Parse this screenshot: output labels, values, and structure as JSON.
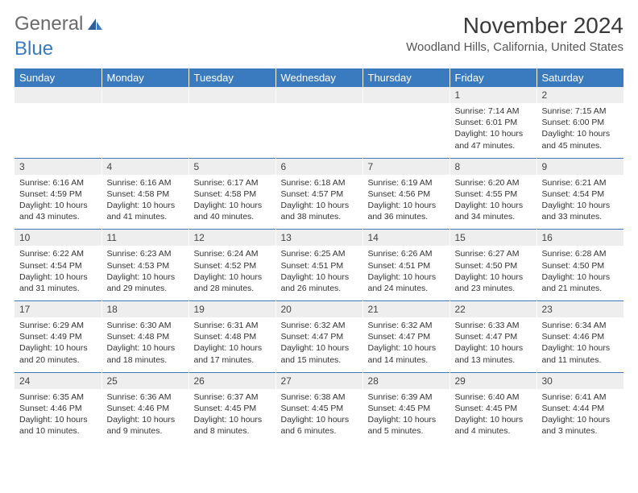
{
  "logo": {
    "part1": "General",
    "part2": "Blue"
  },
  "title": "November 2024",
  "location": "Woodland Hills, California, United States",
  "colors": {
    "header_bg": "#3a7bbf",
    "header_text": "#ffffff",
    "daynum_bg": "#eeeeee",
    "border": "#3a7bbf",
    "text": "#333333"
  },
  "typography": {
    "title_fontsize": 28,
    "location_fontsize": 15,
    "weekday_fontsize": 13,
    "daynum_fontsize": 12,
    "detail_fontsize": 10.5
  },
  "weekdays": [
    "Sunday",
    "Monday",
    "Tuesday",
    "Wednesday",
    "Thursday",
    "Friday",
    "Saturday"
  ],
  "weeks": [
    [
      null,
      null,
      null,
      null,
      null,
      {
        "n": "1",
        "sr": "Sunrise: 7:14 AM",
        "ss": "Sunset: 6:01 PM",
        "dl": "Daylight: 10 hours and 47 minutes."
      },
      {
        "n": "2",
        "sr": "Sunrise: 7:15 AM",
        "ss": "Sunset: 6:00 PM",
        "dl": "Daylight: 10 hours and 45 minutes."
      }
    ],
    [
      {
        "n": "3",
        "sr": "Sunrise: 6:16 AM",
        "ss": "Sunset: 4:59 PM",
        "dl": "Daylight: 10 hours and 43 minutes."
      },
      {
        "n": "4",
        "sr": "Sunrise: 6:16 AM",
        "ss": "Sunset: 4:58 PM",
        "dl": "Daylight: 10 hours and 41 minutes."
      },
      {
        "n": "5",
        "sr": "Sunrise: 6:17 AM",
        "ss": "Sunset: 4:58 PM",
        "dl": "Daylight: 10 hours and 40 minutes."
      },
      {
        "n": "6",
        "sr": "Sunrise: 6:18 AM",
        "ss": "Sunset: 4:57 PM",
        "dl": "Daylight: 10 hours and 38 minutes."
      },
      {
        "n": "7",
        "sr": "Sunrise: 6:19 AM",
        "ss": "Sunset: 4:56 PM",
        "dl": "Daylight: 10 hours and 36 minutes."
      },
      {
        "n": "8",
        "sr": "Sunrise: 6:20 AM",
        "ss": "Sunset: 4:55 PM",
        "dl": "Daylight: 10 hours and 34 minutes."
      },
      {
        "n": "9",
        "sr": "Sunrise: 6:21 AM",
        "ss": "Sunset: 4:54 PM",
        "dl": "Daylight: 10 hours and 33 minutes."
      }
    ],
    [
      {
        "n": "10",
        "sr": "Sunrise: 6:22 AM",
        "ss": "Sunset: 4:54 PM",
        "dl": "Daylight: 10 hours and 31 minutes."
      },
      {
        "n": "11",
        "sr": "Sunrise: 6:23 AM",
        "ss": "Sunset: 4:53 PM",
        "dl": "Daylight: 10 hours and 29 minutes."
      },
      {
        "n": "12",
        "sr": "Sunrise: 6:24 AM",
        "ss": "Sunset: 4:52 PM",
        "dl": "Daylight: 10 hours and 28 minutes."
      },
      {
        "n": "13",
        "sr": "Sunrise: 6:25 AM",
        "ss": "Sunset: 4:51 PM",
        "dl": "Daylight: 10 hours and 26 minutes."
      },
      {
        "n": "14",
        "sr": "Sunrise: 6:26 AM",
        "ss": "Sunset: 4:51 PM",
        "dl": "Daylight: 10 hours and 24 minutes."
      },
      {
        "n": "15",
        "sr": "Sunrise: 6:27 AM",
        "ss": "Sunset: 4:50 PM",
        "dl": "Daylight: 10 hours and 23 minutes."
      },
      {
        "n": "16",
        "sr": "Sunrise: 6:28 AM",
        "ss": "Sunset: 4:50 PM",
        "dl": "Daylight: 10 hours and 21 minutes."
      }
    ],
    [
      {
        "n": "17",
        "sr": "Sunrise: 6:29 AM",
        "ss": "Sunset: 4:49 PM",
        "dl": "Daylight: 10 hours and 20 minutes."
      },
      {
        "n": "18",
        "sr": "Sunrise: 6:30 AM",
        "ss": "Sunset: 4:48 PM",
        "dl": "Daylight: 10 hours and 18 minutes."
      },
      {
        "n": "19",
        "sr": "Sunrise: 6:31 AM",
        "ss": "Sunset: 4:48 PM",
        "dl": "Daylight: 10 hours and 17 minutes."
      },
      {
        "n": "20",
        "sr": "Sunrise: 6:32 AM",
        "ss": "Sunset: 4:47 PM",
        "dl": "Daylight: 10 hours and 15 minutes."
      },
      {
        "n": "21",
        "sr": "Sunrise: 6:32 AM",
        "ss": "Sunset: 4:47 PM",
        "dl": "Daylight: 10 hours and 14 minutes."
      },
      {
        "n": "22",
        "sr": "Sunrise: 6:33 AM",
        "ss": "Sunset: 4:47 PM",
        "dl": "Daylight: 10 hours and 13 minutes."
      },
      {
        "n": "23",
        "sr": "Sunrise: 6:34 AM",
        "ss": "Sunset: 4:46 PM",
        "dl": "Daylight: 10 hours and 11 minutes."
      }
    ],
    [
      {
        "n": "24",
        "sr": "Sunrise: 6:35 AM",
        "ss": "Sunset: 4:46 PM",
        "dl": "Daylight: 10 hours and 10 minutes."
      },
      {
        "n": "25",
        "sr": "Sunrise: 6:36 AM",
        "ss": "Sunset: 4:46 PM",
        "dl": "Daylight: 10 hours and 9 minutes."
      },
      {
        "n": "26",
        "sr": "Sunrise: 6:37 AM",
        "ss": "Sunset: 4:45 PM",
        "dl": "Daylight: 10 hours and 8 minutes."
      },
      {
        "n": "27",
        "sr": "Sunrise: 6:38 AM",
        "ss": "Sunset: 4:45 PM",
        "dl": "Daylight: 10 hours and 6 minutes."
      },
      {
        "n": "28",
        "sr": "Sunrise: 6:39 AM",
        "ss": "Sunset: 4:45 PM",
        "dl": "Daylight: 10 hours and 5 minutes."
      },
      {
        "n": "29",
        "sr": "Sunrise: 6:40 AM",
        "ss": "Sunset: 4:45 PM",
        "dl": "Daylight: 10 hours and 4 minutes."
      },
      {
        "n": "30",
        "sr": "Sunrise: 6:41 AM",
        "ss": "Sunset: 4:44 PM",
        "dl": "Daylight: 10 hours and 3 minutes."
      }
    ]
  ]
}
